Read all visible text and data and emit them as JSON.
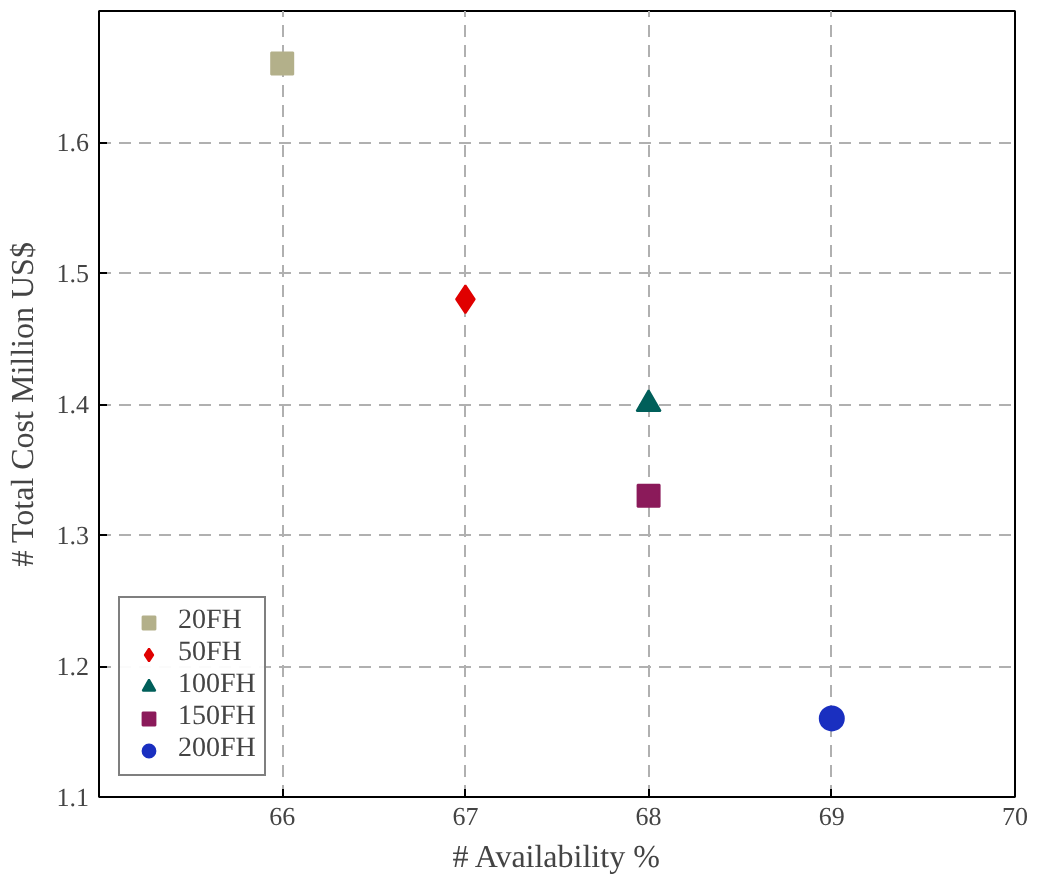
{
  "chart_data": {
    "type": "scatter",
    "xlabel": "# Availability %",
    "ylabel": "# Total Cost Million US$",
    "xlim": [
      65,
      70
    ],
    "ylim": [
      1.1,
      1.7
    ],
    "xticks": [
      66,
      67,
      68,
      69,
      70
    ],
    "yticks": [
      1.1,
      1.2,
      1.3,
      1.4,
      1.5,
      1.6
    ],
    "grid": true,
    "legend": "bottom left",
    "series": [
      {
        "name": "20FH",
        "color": "#b3b08a",
        "marker": "square",
        "x": [
          66
        ],
        "values": [
          1.66
        ]
      },
      {
        "name": "50FH",
        "color": "#e00000",
        "marker": "diamond",
        "x": [
          67
        ],
        "values": [
          1.48
        ]
      },
      {
        "name": "100FH",
        "color": "#005f5a",
        "marker": "triangle",
        "x": [
          68
        ],
        "values": [
          1.4
        ]
      },
      {
        "name": "150FH",
        "color": "#8b1a5a",
        "marker": "square",
        "x": [
          68
        ],
        "values": [
          1.33
        ]
      },
      {
        "name": "200FH",
        "color": "#1a2fc0",
        "marker": "circle",
        "x": [
          69
        ],
        "values": [
          1.16
        ]
      }
    ]
  }
}
